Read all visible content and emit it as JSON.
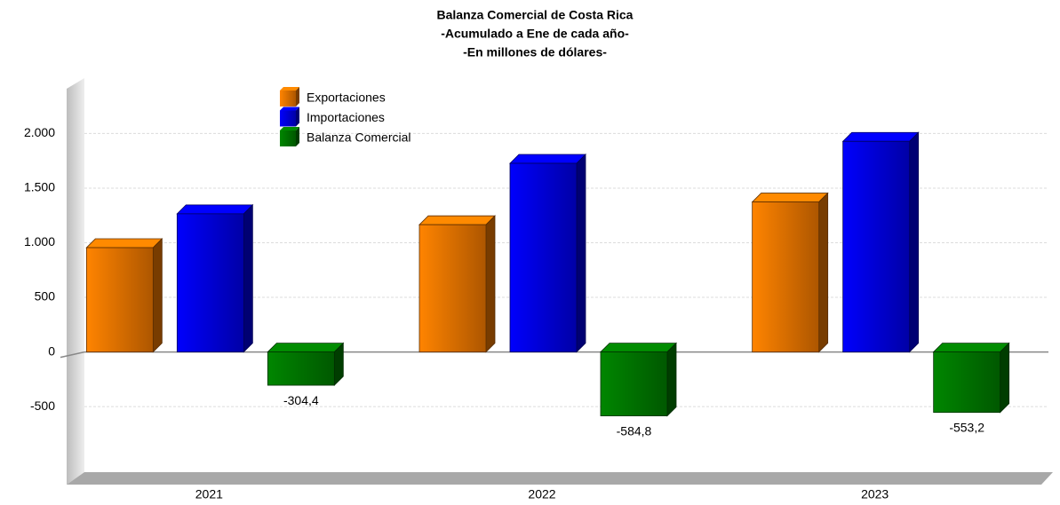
{
  "chart_data": {
    "type": "bar3d",
    "title": "Balanza Comercial de Costa Rica",
    "subtitle": [
      "-Acumulado a Ene de cada año-",
      "-En millones de dólares-"
    ],
    "categories": [
      "2021",
      "2022",
      "2023"
    ],
    "series": [
      {
        "name": "Exportaciones",
        "color": "#f07800",
        "values": [
          955,
          1165,
          1373
        ]
      },
      {
        "name": "Importaciones",
        "color": "#0000e6",
        "values": [
          1265,
          1727,
          1928
        ]
      },
      {
        "name": "Balanza Comercial",
        "color": "#007a00",
        "values": [
          -304.4,
          -584.8,
          -553.2
        ],
        "value_labels": [
          "-304,4",
          "-584,8",
          "-553,2"
        ]
      }
    ],
    "ylim": [
      -1100,
      2450
    ],
    "yticks": [
      -500,
      0,
      500,
      {
        "value": 1000,
        "label": "1.000"
      },
      {
        "value": 1500,
        "label": "1.500"
      },
      {
        "value": 2000,
        "label": "2.000"
      }
    ],
    "grid": true,
    "legend": "top-left"
  }
}
